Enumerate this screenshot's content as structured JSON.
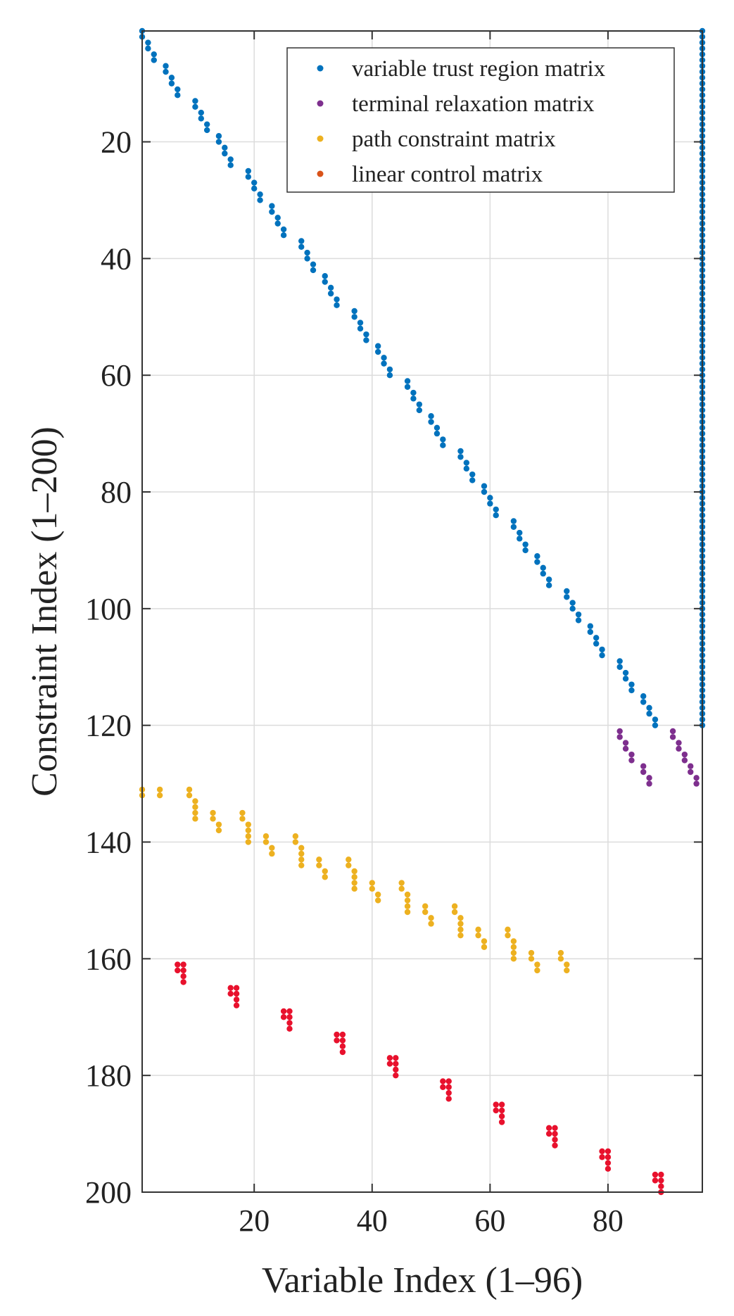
{
  "chart_data": {
    "type": "scatter",
    "title": "",
    "xlabel": "Variable Index (1–96)",
    "ylabel": "Constraint Index (1–200)",
    "xlim": [
      1,
      96
    ],
    "ylim": [
      1,
      200
    ],
    "y_reversed": true,
    "grid": true,
    "xticks": [
      20,
      40,
      60,
      80
    ],
    "yticks": [
      20,
      40,
      60,
      80,
      100,
      120,
      140,
      160,
      180,
      200
    ],
    "legend_position": "top-right",
    "series": [
      {
        "name": "variable trust region matrix",
        "color": "#0072BD",
        "pattern": "staircase",
        "blocks": 10,
        "rows_per_block": 12,
        "cols_per_block": 9,
        "row_start": 1,
        "col_start": 1,
        "extra_column": 96,
        "extra_column_rows": [
          1,
          120
        ]
      },
      {
        "name": "terminal relaxation matrix",
        "color": "#7E2F8E",
        "points": [
          [
            82,
            121
          ],
          [
            82,
            122
          ],
          [
            83,
            123
          ],
          [
            83,
            124
          ],
          [
            84,
            125
          ],
          [
            84,
            126
          ],
          [
            86,
            127
          ],
          [
            86,
            128
          ],
          [
            87,
            129
          ],
          [
            87,
            130
          ],
          [
            91,
            121
          ],
          [
            91,
            122
          ],
          [
            92,
            123
          ],
          [
            92,
            124
          ],
          [
            93,
            125
          ],
          [
            93,
            126
          ],
          [
            94,
            127
          ],
          [
            94,
            128
          ],
          [
            95,
            129
          ],
          [
            95,
            130
          ]
        ]
      },
      {
        "name": "path constraint matrix",
        "color": "#EDB120",
        "pattern": "steps",
        "blocks": 8,
        "rows_per_block": 4,
        "row_start": 131,
        "block_col_offsets": [
          0,
          0,
          3,
          4,
          8,
          9
        ],
        "block_col_stride": 9
      },
      {
        "name": "linear control matrix",
        "color": "#D95319",
        "pattern": "pairs",
        "blocks": 10,
        "rows_per_block": 4,
        "row_start": 161,
        "col_start": 7,
        "block_col_stride": 9
      }
    ]
  }
}
